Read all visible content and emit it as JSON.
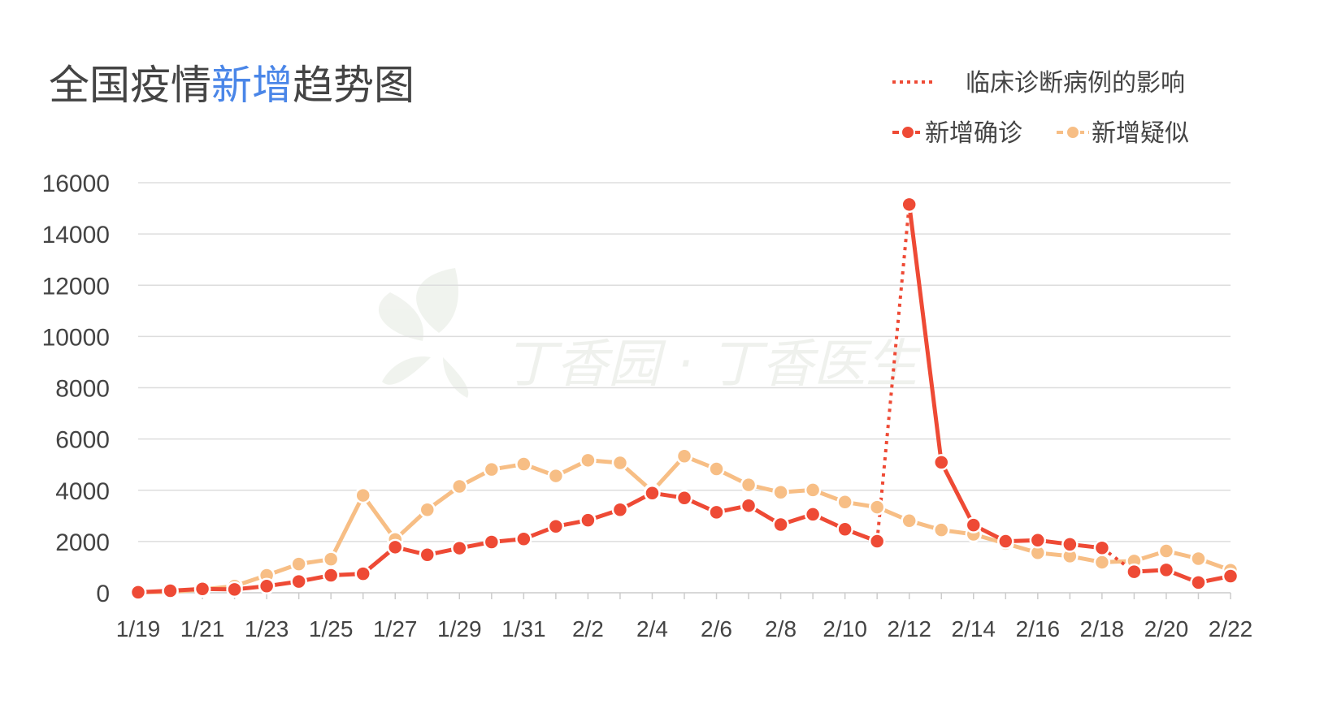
{
  "chart_data": {
    "type": "line",
    "title_parts": [
      {
        "text": "全国疫情",
        "accent": false
      },
      {
        "text": "新增",
        "accent": true
      },
      {
        "text": "趋势图",
        "accent": false
      }
    ],
    "watermark": "丁香园 · 丁香医生",
    "legend": {
      "dotted_label": "临床诊断病例的影响",
      "items": [
        {
          "label": "新增确诊",
          "color": "#ee4a35"
        },
        {
          "label": "新增疑似",
          "color": "#f7be85"
        }
      ],
      "position": "top-right"
    },
    "ylim": [
      0,
      16000
    ],
    "yticks": [
      "0",
      "2000",
      "4000",
      "6000",
      "8000",
      "10000",
      "12000",
      "14000",
      "16000"
    ],
    "x": [
      "1/19",
      "1/20",
      "1/21",
      "1/22",
      "1/23",
      "1/24",
      "1/25",
      "1/26",
      "1/27",
      "1/28",
      "1/29",
      "1/30",
      "1/31",
      "2/1",
      "2/2",
      "2/3",
      "2/4",
      "2/5",
      "2/6",
      "2/7",
      "2/8",
      "2/9",
      "2/10",
      "2/11",
      "2/12",
      "2/13",
      "2/14",
      "2/15",
      "2/16",
      "2/17",
      "2/18",
      "2/19",
      "2/20",
      "2/21",
      "2/22"
    ],
    "xtick_labels": [
      "1/19",
      "1/21",
      "1/23",
      "1/25",
      "1/27",
      "1/29",
      "1/31",
      "2/2",
      "2/4",
      "2/6",
      "2/8",
      "2/10",
      "2/12",
      "2/14",
      "2/16",
      "2/18",
      "2/20",
      "2/22"
    ],
    "series": [
      {
        "name": "新增疑似",
        "color": "#f7be85",
        "values": [
          30,
          30,
          130,
          260,
          680,
          1120,
          1310,
          3800,
          2080,
          3240,
          4150,
          4810,
          5020,
          4560,
          5170,
          5070,
          3960,
          5330,
          4830,
          4210,
          3920,
          4010,
          3540,
          3340,
          2810,
          2450,
          2280,
          1920,
          1560,
          1430,
          1190,
          1240,
          1630,
          1330,
          880
        ]
      },
      {
        "name": "新增确诊",
        "color": "#ee4a35",
        "values": [
          20,
          80,
          150,
          130,
          260,
          440,
          680,
          740,
          1780,
          1480,
          1740,
          1980,
          2100,
          2590,
          2830,
          3240,
          3890,
          3700,
          3140,
          3400,
          2660,
          3060,
          2480,
          2010,
          15150,
          5090,
          2640,
          2010,
          2050,
          1890,
          1750,
          820,
          890,
          400,
          650
        ],
        "dotted_segments": [
          [
            23,
            24
          ],
          [
            30,
            31
          ]
        ]
      }
    ]
  }
}
